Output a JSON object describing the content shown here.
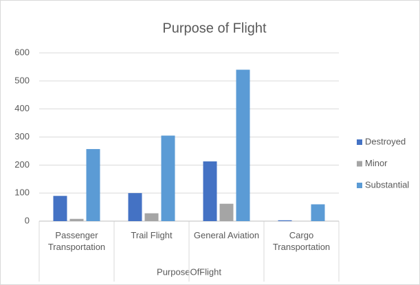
{
  "chart_data": {
    "type": "bar",
    "title": "Purpose of Flight",
    "x_label": "PurposeOfFlight",
    "categories": [
      "Passenger Transportation",
      "Trail Flight",
      "General Aviation",
      "Cargo Transportation"
    ],
    "series": [
      {
        "name": "Destroyed",
        "color": "#4472c4",
        "values": [
          90,
          100,
          213,
          3
        ]
      },
      {
        "name": "Minor",
        "color": "#a5a5a5",
        "values": [
          8,
          28,
          62,
          0
        ]
      },
      {
        "name": "Substantial",
        "color": "#5b9bd5",
        "values": [
          257,
          305,
          540,
          60
        ]
      }
    ],
    "ylim": [
      0,
      600
    ],
    "yticks": [
      0,
      100,
      200,
      300,
      400,
      500,
      600
    ],
    "grid": true,
    "legend": "right"
  }
}
